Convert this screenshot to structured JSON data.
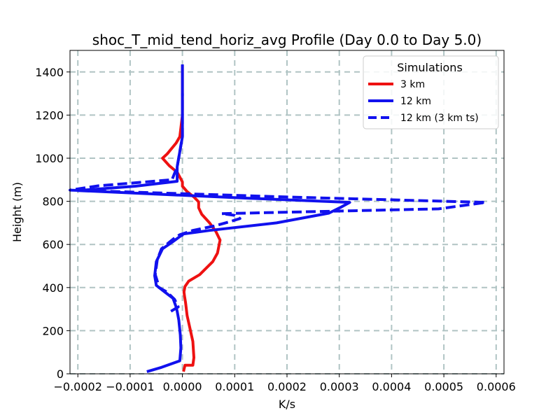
{
  "chart_data": {
    "type": "line",
    "title": "shoc_T_mid_tend_horiz_avg Profile (Day 0.0 to Day 5.0)",
    "xlabel": "K/s",
    "ylabel": "Height (m)",
    "xlim": [
      -0.000215,
      0.000615
    ],
    "ylim": [
      0,
      1500
    ],
    "x_ticks": [
      -0.0002,
      -0.0001,
      0.0,
      0.0001,
      0.0002,
      0.0003,
      0.0004,
      0.0005,
      0.0006
    ],
    "x_tick_labels": [
      "−0.0002",
      "−0.0001",
      "0.0000",
      "0.0001",
      "0.0002",
      "0.0003",
      "0.0004",
      "0.0005",
      "0.0006"
    ],
    "y_ticks": [
      0,
      200,
      400,
      600,
      800,
      1000,
      1200,
      1400
    ],
    "y_tick_labels": [
      "0",
      "200",
      "400",
      "600",
      "800",
      "1000",
      "1200",
      "1400"
    ],
    "grid": true,
    "legend": {
      "title": "Simulations",
      "placement": "top-right",
      "entries": [
        "3 km",
        "12 km",
        "12 km (3 km ts)"
      ]
    },
    "series": [
      {
        "name": "3 km",
        "color": "#ee1111",
        "style": "solid",
        "x": [
          2e-06,
          5e-06,
          2e-05,
          2.2e-05,
          2e-05,
          1.4e-05,
          9e-06,
          6e-06,
          4e-06,
          3e-06,
          5e-06,
          1.2e-05,
          3.3e-05,
          5.8e-05,
          6.7e-05,
          7.2e-05,
          6.4e-05,
          5.2e-05,
          3.7e-05,
          3.1e-05,
          3.1e-05,
          3e-05,
          2.2e-05,
          9e-06,
          0.0,
          0.0,
          -1e-05,
          -2.5e-05,
          -3.8e-05,
          -2.9e-05,
          -1.2e-05,
          -5e-06,
          0.0,
          0.0,
          0.0
        ],
        "y": [
          10,
          40,
          40,
          75,
          150,
          215,
          270,
          330,
          360,
          380,
          405,
          430,
          460,
          520,
          560,
          620,
          660,
          700,
          740,
          770,
          795,
          800,
          820,
          845,
          870,
          890,
          935,
          965,
          1000,
          1020,
          1070,
          1100,
          1200,
          1300,
          1430
        ]
      },
      {
        "name": "12 km",
        "color": "#1111ee",
        "style": "solid",
        "x": [
          -6.8e-05,
          -4e-05,
          -5e-06,
          -3e-06,
          -4e-06,
          -7e-06,
          -1e-05,
          -1.2e-05,
          -1.8e-05,
          -3.4e-05,
          -5e-05,
          -5.3e-05,
          -5e-05,
          -3.8e-05,
          -2e-05,
          -3e-06,
          0.0,
          0.0,
          5.2e-05,
          0.00018,
          0.00028,
          0.000305,
          0.00032,
          0.00012,
          -0.0002,
          -9e-05,
          -1e-05,
          -1e-05,
          0.0,
          0.0,
          0.0
        ],
        "y": [
          10,
          30,
          60,
          120,
          180,
          250,
          290,
          310,
          350,
          380,
          410,
          455,
          520,
          580,
          610,
          640,
          643,
          648,
          665,
          700,
          745,
          775,
          795,
          815,
          850,
          870,
          893,
          960,
          1100,
          1250,
          1435
        ]
      },
      {
        "name": "12 km (3 km ts)",
        "color": "#1111ee",
        "style": "dashed",
        "x": [
          -2.2e-05,
          -8e-06,
          -1.5e-05,
          -3e-05,
          -4.5e-05,
          -4.8e-05,
          -5.2e-05,
          -4.8e-05,
          -4e-05,
          -2.5e-05,
          -1.5e-05,
          -5e-06,
          2e-05,
          6e-05,
          9e-05,
          0.00011,
          0.0001,
          7.5e-05,
          0.00049,
          0.00058,
          0.0002,
          -0.000215,
          -0.00016,
          -2e-05,
          -1e-05,
          0.0,
          0.0
        ],
        "y": [
          290,
          310,
          345,
          380,
          400,
          430,
          460,
          530,
          580,
          610,
          630,
          645,
          665,
          685,
          705,
          720,
          735,
          743,
          765,
          795,
          820,
          852,
          872,
          900,
          960,
          1100,
          1300
        ]
      }
    ]
  }
}
